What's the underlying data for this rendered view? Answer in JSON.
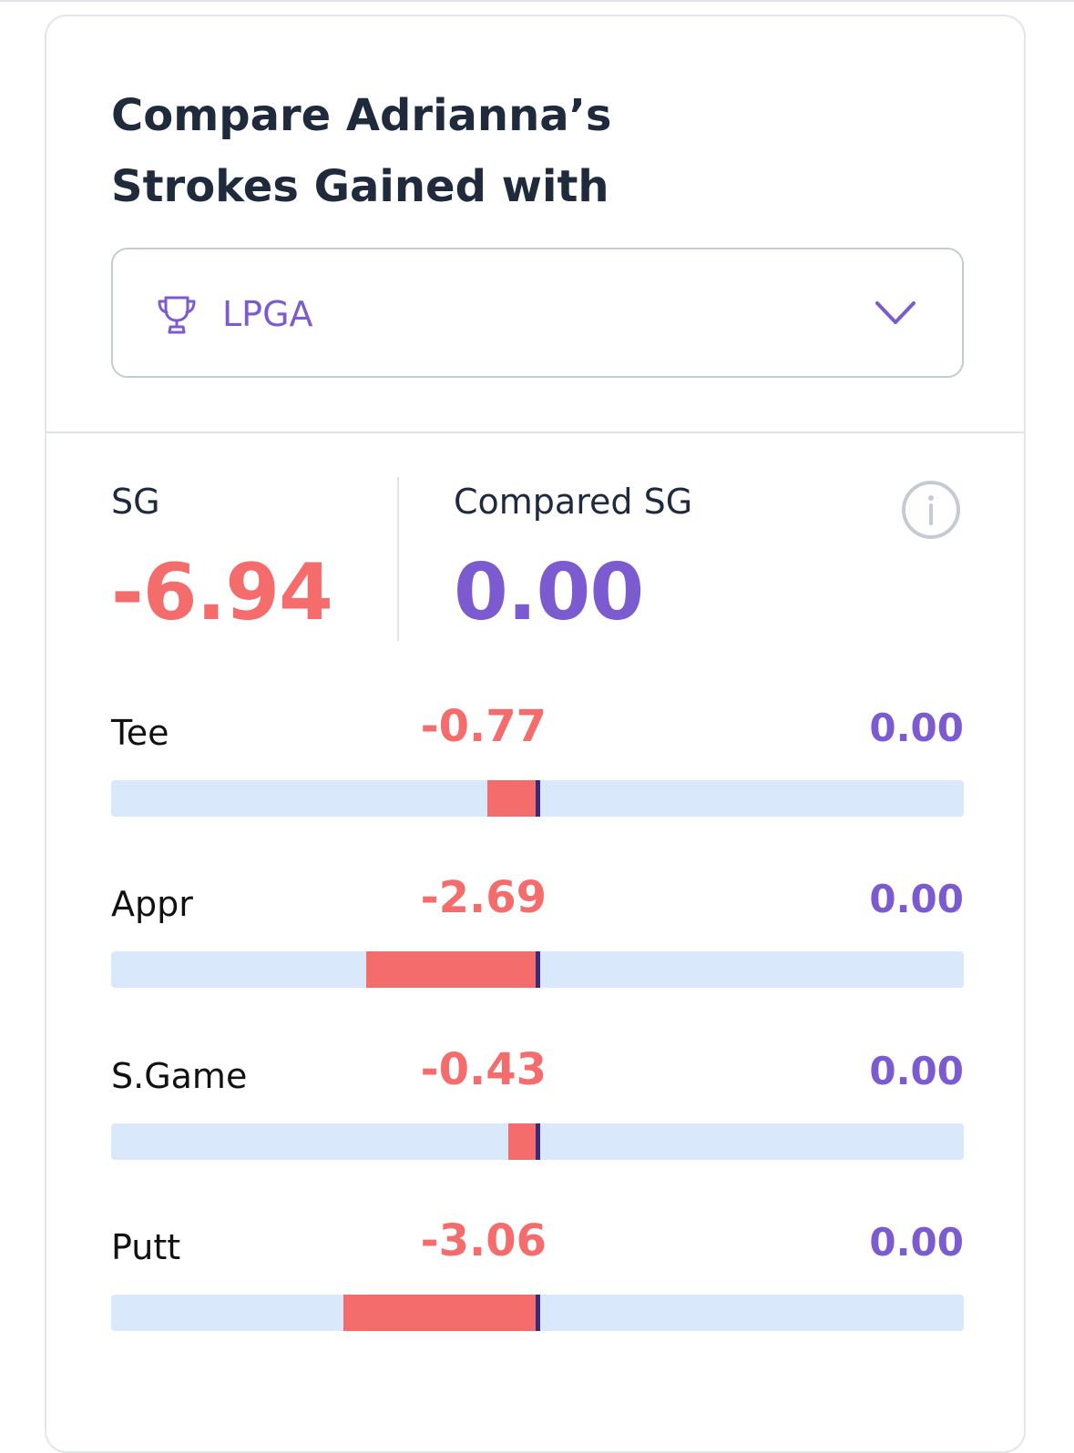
{
  "title": "Compare Adrianna’s\nStrokes Gained with",
  "dropdown": {
    "icon": "trophy-icon",
    "value": "LPGA",
    "chevron": "chevron-down-icon"
  },
  "summary": {
    "sg_label": "SG",
    "sg_value": "-6.94",
    "compared_label": "Compared SG",
    "compared_value": "0.00",
    "info_icon": "info-icon"
  },
  "scale": {
    "max_abs": 7.0
  },
  "stats": [
    {
      "label": "Tee",
      "value": "-0.77",
      "num": -0.77,
      "compared": "0.00"
    },
    {
      "label": "Appr",
      "value": "-2.69",
      "num": -2.69,
      "compared": "0.00"
    },
    {
      "label": "S.Game",
      "value": "-0.43",
      "num": -0.43,
      "compared": "0.00"
    },
    {
      "label": "Putt",
      "value": "-3.06",
      "num": -3.06,
      "compared": "0.00"
    }
  ],
  "colors": {
    "negative": "#f56c6c",
    "compare": "#7c5bd1",
    "track": "#dae8fb",
    "marker": "#3a2a7e",
    "text": "#1f2a3c"
  }
}
